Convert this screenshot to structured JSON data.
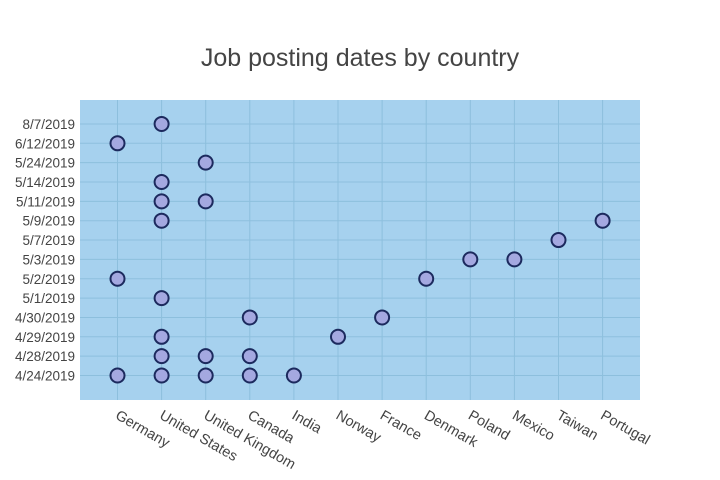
{
  "chart_data": {
    "type": "scatter",
    "title": "Job posting dates by country",
    "xlabel": "",
    "ylabel": "",
    "x_categories": [
      "Germany",
      "United States",
      "United Kingdom",
      "Canada",
      "India",
      "Norway",
      "France",
      "Denmark",
      "Poland",
      "Mexico",
      "Taiwan",
      "Portugal"
    ],
    "y_categories": [
      "4/24/2019",
      "4/28/2019",
      "4/29/2019",
      "4/30/2019",
      "5/1/2019",
      "5/2/2019",
      "5/3/2019",
      "5/7/2019",
      "5/9/2019",
      "5/11/2019",
      "5/14/2019",
      "5/24/2019",
      "6/12/2019",
      "8/7/2019"
    ],
    "points": [
      {
        "x": "Germany",
        "y": "6/12/2019"
      },
      {
        "x": "Germany",
        "y": "5/2/2019"
      },
      {
        "x": "Germany",
        "y": "4/24/2019"
      },
      {
        "x": "United States",
        "y": "8/7/2019"
      },
      {
        "x": "United States",
        "y": "5/14/2019"
      },
      {
        "x": "United States",
        "y": "5/11/2019"
      },
      {
        "x": "United States",
        "y": "5/9/2019"
      },
      {
        "x": "United States",
        "y": "5/1/2019"
      },
      {
        "x": "United States",
        "y": "4/29/2019"
      },
      {
        "x": "United States",
        "y": "4/28/2019"
      },
      {
        "x": "United States",
        "y": "4/24/2019"
      },
      {
        "x": "United Kingdom",
        "y": "5/24/2019"
      },
      {
        "x": "United Kingdom",
        "y": "5/11/2019"
      },
      {
        "x": "United Kingdom",
        "y": "4/28/2019"
      },
      {
        "x": "United Kingdom",
        "y": "4/24/2019"
      },
      {
        "x": "Canada",
        "y": "4/30/2019"
      },
      {
        "x": "Canada",
        "y": "4/28/2019"
      },
      {
        "x": "Canada",
        "y": "4/24/2019"
      },
      {
        "x": "India",
        "y": "4/24/2019"
      },
      {
        "x": "Norway",
        "y": "4/29/2019"
      },
      {
        "x": "France",
        "y": "4/30/2019"
      },
      {
        "x": "Denmark",
        "y": "5/2/2019"
      },
      {
        "x": "Poland",
        "y": "5/3/2019"
      },
      {
        "x": "Mexico",
        "y": "5/3/2019"
      },
      {
        "x": "Taiwan",
        "y": "5/7/2019"
      },
      {
        "x": "Portugal",
        "y": "5/9/2019"
      }
    ],
    "grid": true,
    "legend": "none",
    "colors": {
      "plot_background": "#a6d1ee",
      "marker_fill": "#a4a8e0",
      "marker_edge": "#1c2a5e",
      "gridline": "#8dbfdd",
      "text": "#444444"
    }
  }
}
